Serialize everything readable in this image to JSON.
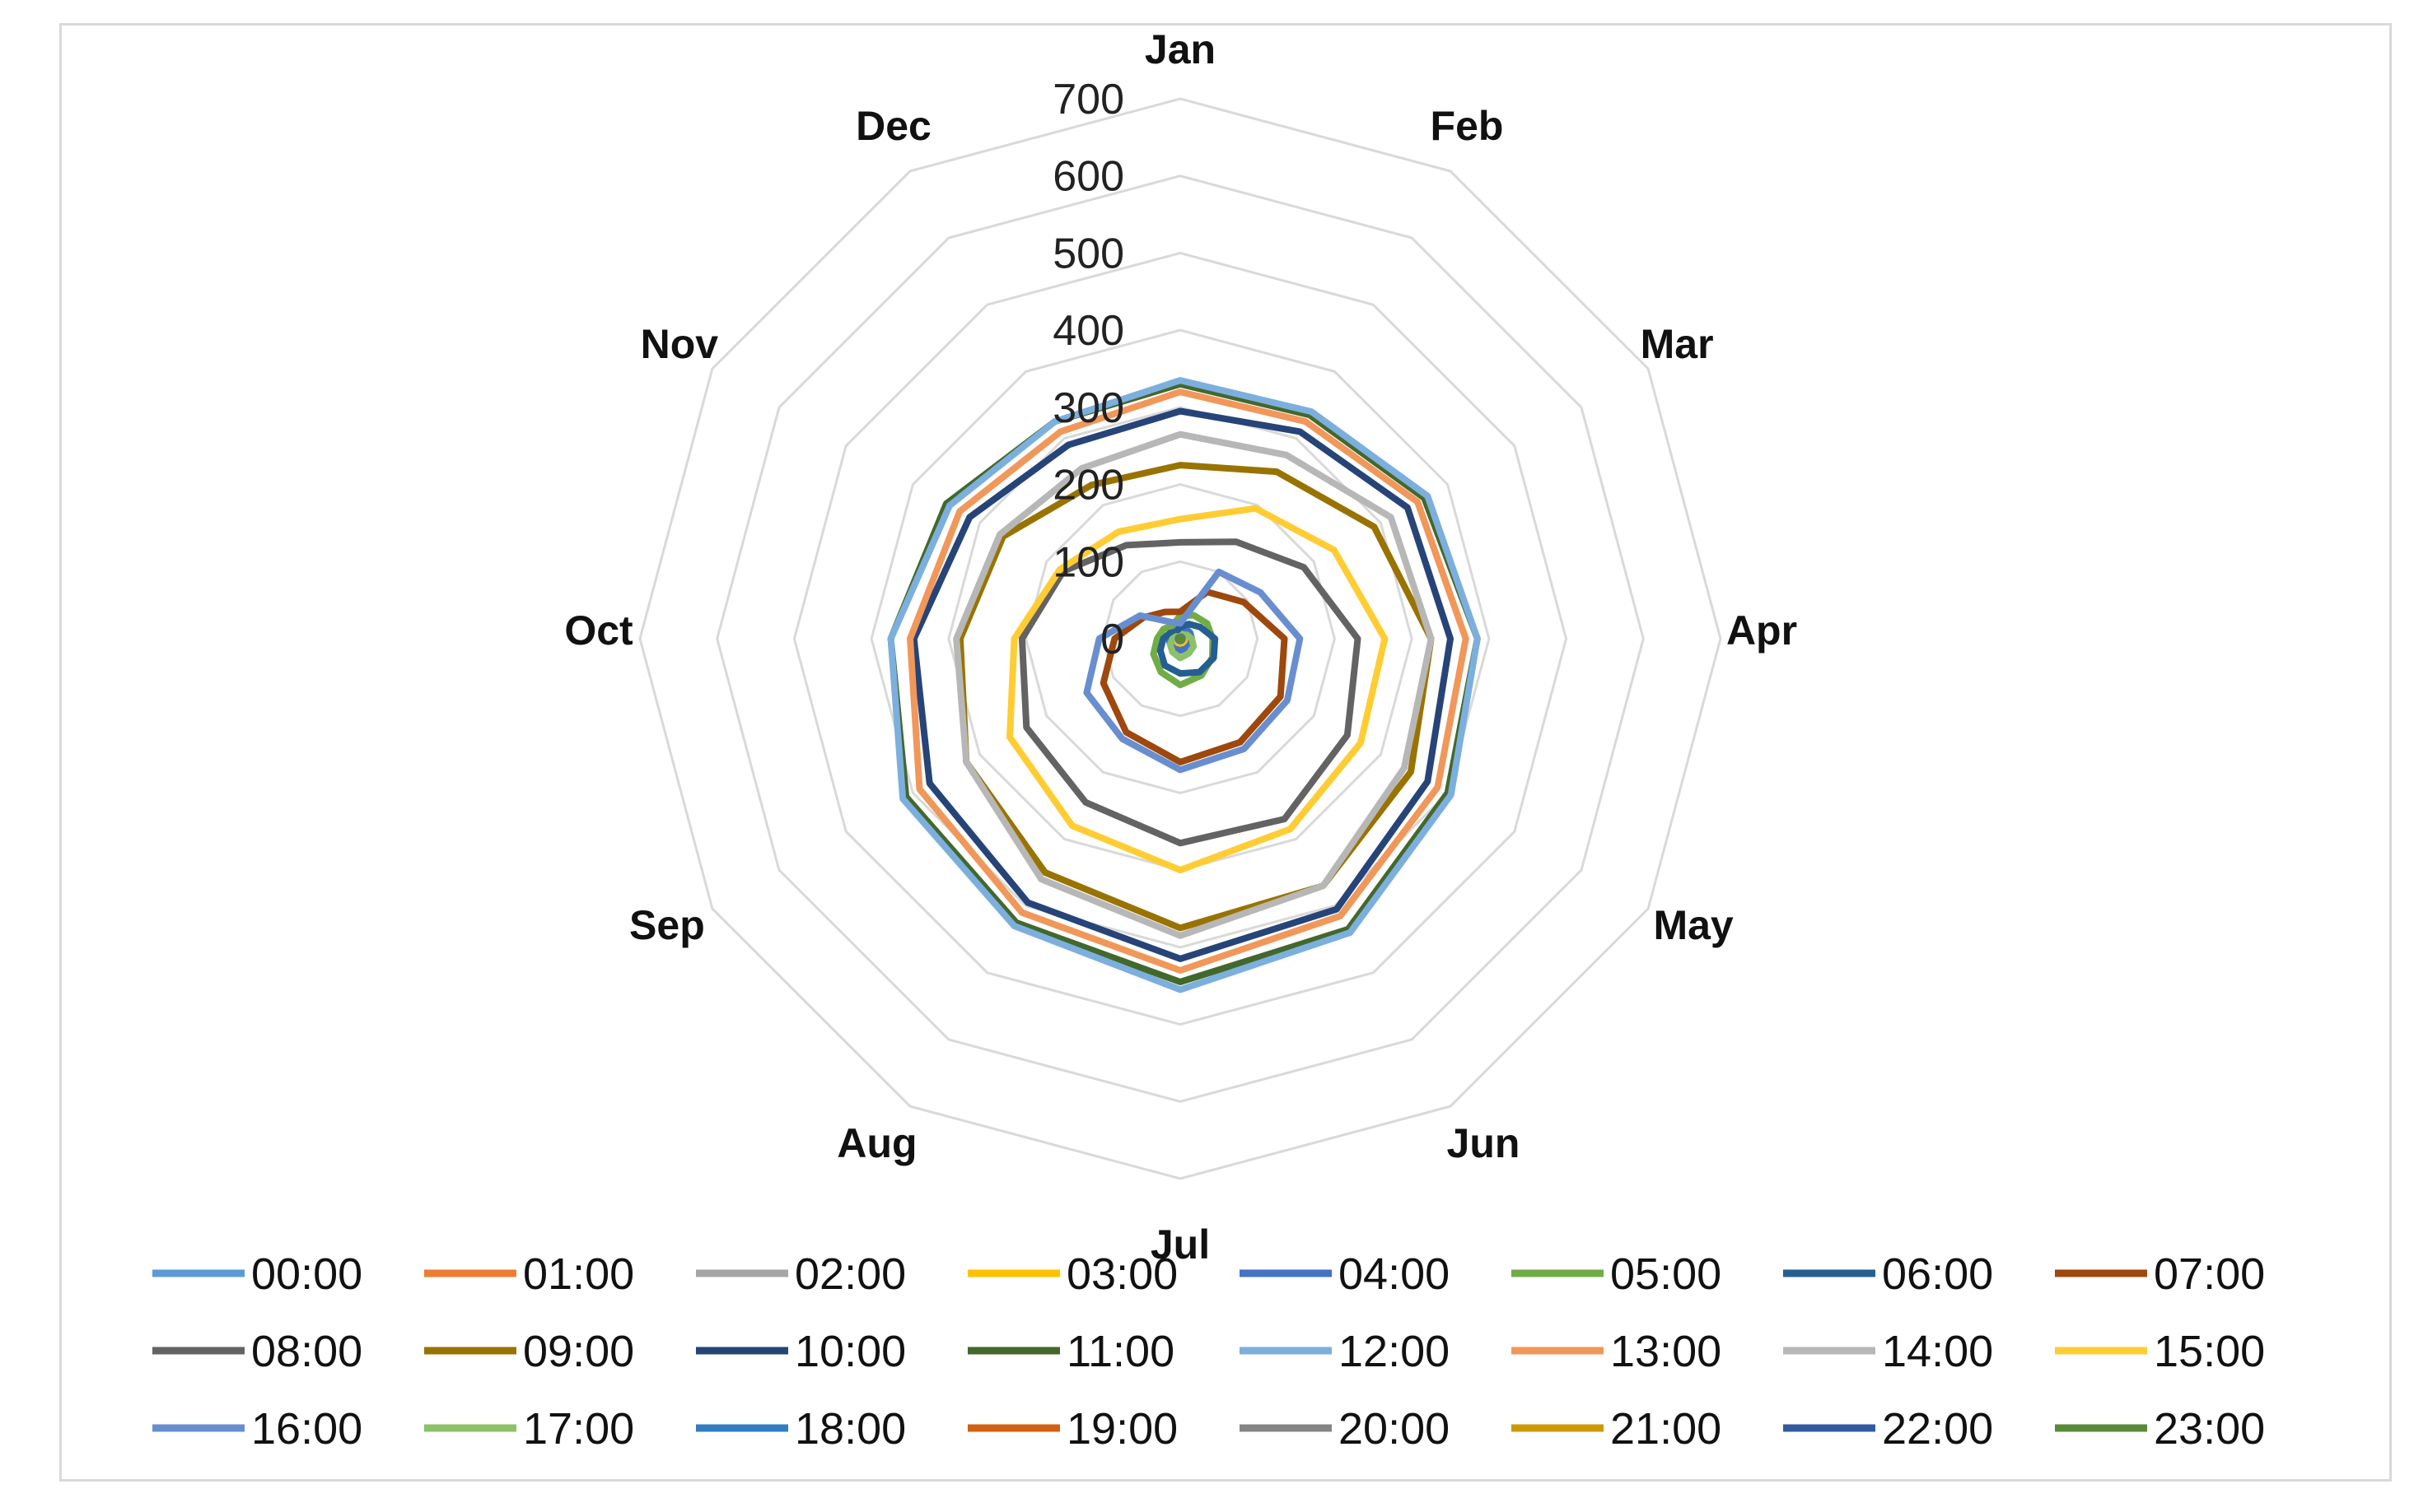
{
  "chart_data": {
    "type": "radar",
    "title": "",
    "categories": [
      "Jan",
      "Feb",
      "Mar",
      "Apr",
      "May",
      "Jun",
      "Jul",
      "Aug",
      "Sep",
      "Oct",
      "Nov",
      "Dec"
    ],
    "rlim": [
      0,
      700
    ],
    "ticks": [
      "0",
      "100",
      "200",
      "300",
      "400",
      "500",
      "600",
      "700"
    ],
    "tick_values": [
      0,
      100,
      200,
      300,
      400,
      500,
      600,
      700
    ],
    "grid": true,
    "legend_position": "bottom",
    "series": [
      {
        "name": "00:00",
        "color": "#5B9BD5",
        "values": [
          5,
          5,
          5,
          5,
          5,
          5,
          5,
          5,
          5,
          5,
          5,
          5
        ]
      },
      {
        "name": "01:00",
        "color": "#ED7D31",
        "values": [
          8,
          8,
          8,
          8,
          8,
          8,
          8,
          8,
          8,
          8,
          8,
          8
        ]
      },
      {
        "name": "02:00",
        "color": "#A5A5A5",
        "values": [
          10,
          10,
          10,
          10,
          10,
          10,
          10,
          10,
          10,
          10,
          10,
          10
        ]
      },
      {
        "name": "03:00",
        "color": "#FFC000",
        "values": [
          12,
          12,
          12,
          12,
          12,
          12,
          12,
          12,
          12,
          12,
          12,
          12
        ]
      },
      {
        "name": "04:00",
        "color": "#4472C4",
        "values": [
          15,
          15,
          15,
          15,
          15,
          15,
          15,
          15,
          15,
          15,
          15,
          15
        ]
      },
      {
        "name": "05:00",
        "color": "#70AD47",
        "values": [
          30,
          35,
          40,
          42,
          48,
          55,
          60,
          50,
          40,
          30,
          25,
          20
        ]
      },
      {
        "name": "06:00",
        "color": "#255E91",
        "values": [
          15,
          22,
          30,
          45,
          50,
          50,
          45,
          40,
          30,
          22,
          15,
          10
        ]
      },
      {
        "name": "07:00",
        "color": "#9E480E",
        "values": [
          35,
          70,
          95,
          135,
          150,
          155,
          160,
          140,
          115,
          85,
          55,
          40
        ]
      },
      {
        "name": "08:00",
        "color": "#636363",
        "values": [
          125,
          145,
          185,
          230,
          250,
          270,
          265,
          245,
          230,
          205,
          175,
          140
        ]
      },
      {
        "name": "09:00",
        "color": "#997300",
        "values": [
          225,
          250,
          290,
          325,
          345,
          370,
          375,
          350,
          320,
          285,
          265,
          230
        ]
      },
      {
        "name": "10:00",
        "color": "#264478",
        "values": [
          295,
          310,
          340,
          350,
          370,
          405,
          415,
          395,
          375,
          345,
          315,
          290
        ]
      },
      {
        "name": "11:00",
        "color": "#43682B",
        "values": [
          330,
          335,
          365,
          385,
          400,
          435,
          445,
          425,
          410,
          375,
          350,
          325
        ]
      },
      {
        "name": "12:00",
        "color": "#7CAFDD",
        "values": [
          335,
          340,
          370,
          385,
          405,
          440,
          455,
          430,
          415,
          375,
          345,
          325
        ]
      },
      {
        "name": "13:00",
        "color": "#F1975A",
        "values": [
          320,
          325,
          355,
          370,
          385,
          415,
          430,
          410,
          390,
          350,
          330,
          310
        ]
      },
      {
        "name": "14:00",
        "color": "#B7B7B7",
        "values": [
          265,
          275,
          315,
          325,
          335,
          370,
          385,
          360,
          320,
          290,
          270,
          255
        ]
      },
      {
        "name": "15:00",
        "color": "#FFCD33",
        "values": [
          155,
          195,
          230,
          265,
          270,
          285,
          300,
          280,
          255,
          215,
          180,
          160
        ]
      },
      {
        "name": "16:00",
        "color": "#698ED0",
        "values": [
          20,
          100,
          120,
          155,
          160,
          165,
          170,
          150,
          140,
          105,
          60,
          25
        ]
      },
      {
        "name": "17:00",
        "color": "#8CC168",
        "values": [
          3,
          6,
          10,
          15,
          20,
          22,
          25,
          20,
          15,
          10,
          6,
          3
        ]
      },
      {
        "name": "18:00",
        "color": "#327DC2",
        "values": [
          2,
          3,
          3,
          3,
          3,
          3,
          3,
          3,
          3,
          3,
          3,
          2
        ]
      },
      {
        "name": "19:00",
        "color": "#D26012",
        "values": [
          2,
          2,
          2,
          2,
          2,
          2,
          2,
          2,
          2,
          2,
          2,
          2
        ]
      },
      {
        "name": "20:00",
        "color": "#848484",
        "values": [
          2,
          2,
          2,
          2,
          2,
          2,
          2,
          2,
          2,
          2,
          2,
          2
        ]
      },
      {
        "name": "21:00",
        "color": "#CC9A00",
        "values": [
          2,
          2,
          2,
          2,
          2,
          2,
          2,
          2,
          2,
          2,
          2,
          2
        ]
      },
      {
        "name": "22:00",
        "color": "#335AA1",
        "values": [
          2,
          2,
          2,
          2,
          2,
          2,
          2,
          2,
          2,
          2,
          2,
          2
        ]
      },
      {
        "name": "23:00",
        "color": "#5A8A39",
        "values": [
          2,
          2,
          2,
          2,
          2,
          2,
          2,
          2,
          2,
          2,
          2,
          2
        ]
      }
    ]
  }
}
